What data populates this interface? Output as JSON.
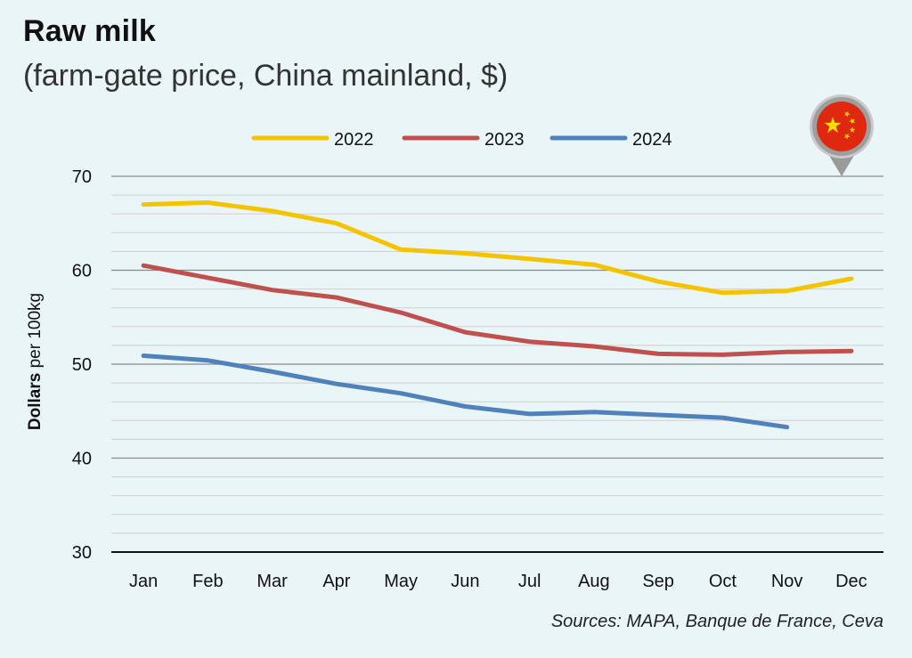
{
  "header": {
    "title": "Raw milk",
    "subtitle": "(farm-gate price, China mainland, $)"
  },
  "footer": {
    "source": "Sources: MAPA, Banque de France, Ceva"
  },
  "badge": {
    "icon": "china-flag-map-pin-icon",
    "flag_red": "#de2910",
    "star_yellow": "#ffde00"
  },
  "chart_data": {
    "type": "line",
    "title": "Raw milk",
    "subtitle": "(farm-gate price, China mainland, $)",
    "ylabel_bold": "Dollars",
    "ylabel_rest": " per 100kg",
    "xlabel": "",
    "ylim": [
      30,
      70
    ],
    "yticks": [
      30,
      40,
      50,
      60,
      70
    ],
    "minor_grid_step": 2,
    "legend_position": "top-center",
    "categories": [
      "Jan",
      "Feb",
      "Mar",
      "Apr",
      "May",
      "Jun",
      "Jul",
      "Aug",
      "Sep",
      "Oct",
      "Nov",
      "Dec"
    ],
    "series": [
      {
        "name": "2022",
        "color": "#f5c400",
        "values": [
          67.0,
          67.2,
          66.3,
          65.0,
          62.2,
          61.8,
          61.2,
          60.6,
          58.8,
          57.6,
          57.8,
          59.1
        ]
      },
      {
        "name": "2023",
        "color": "#c0504d",
        "values": [
          60.5,
          59.2,
          57.9,
          57.1,
          55.5,
          53.4,
          52.4,
          51.9,
          51.1,
          51.0,
          51.3,
          51.4
        ]
      },
      {
        "name": "2024",
        "color": "#4f81bd",
        "values": [
          50.9,
          50.4,
          49.2,
          47.9,
          46.9,
          45.5,
          44.7,
          44.9,
          44.6,
          44.3,
          43.3,
          null
        ]
      }
    ]
  }
}
